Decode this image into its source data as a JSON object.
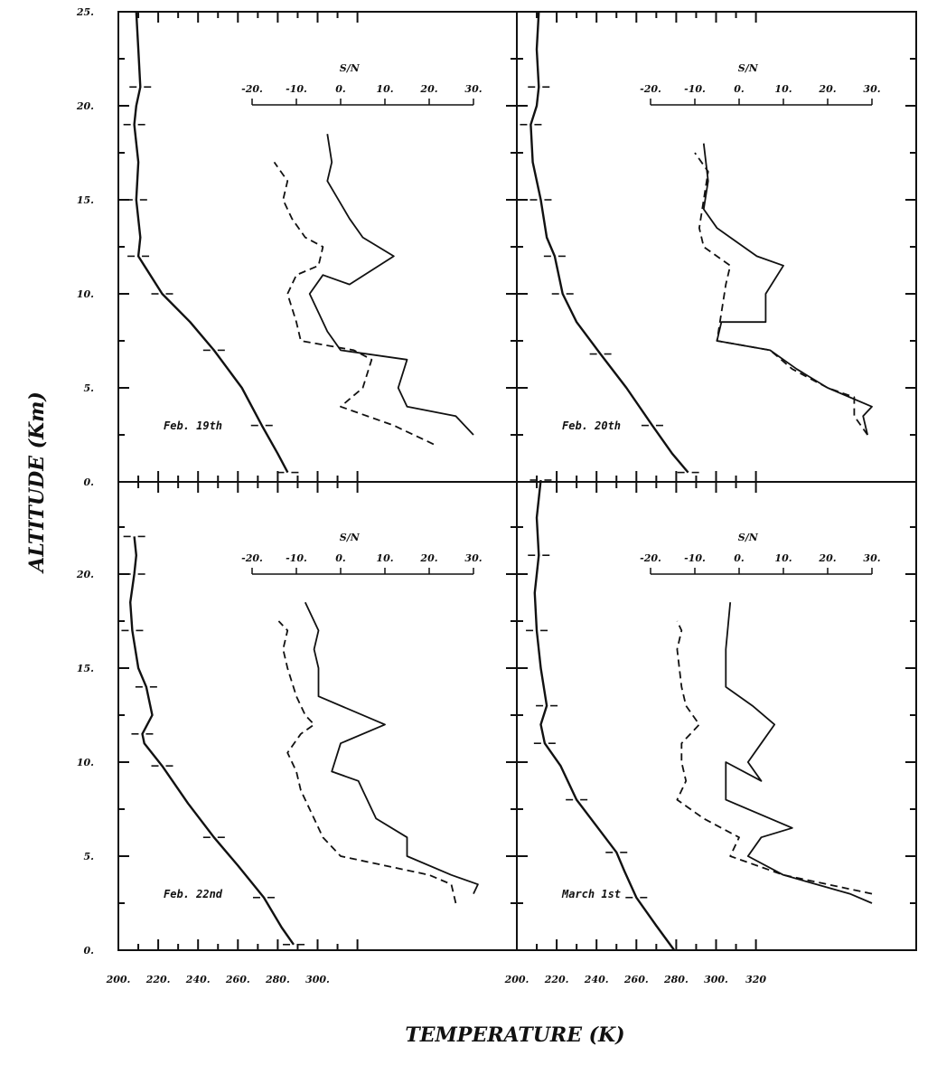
{
  "chart_data": {
    "type": "line",
    "xlabel": "TEMPERATURE (K)",
    "ylabel": "ALTITUDE (Km)",
    "x_ticks": [
      "200.",
      "220.",
      "240.",
      "260.",
      "280.",
      "300.",
      "320"
    ],
    "x_ticks_panel_left": [
      "200.",
      "220.",
      "240.",
      "260.",
      "280.",
      "300."
    ],
    "y_ticks_top": [
      "0.",
      "5.",
      "10.",
      "15.",
      "20.",
      "25."
    ],
    "y_ticks_bottom": [
      "0.",
      "5.",
      "10.",
      "15.",
      "20."
    ],
    "sn_title": "S/N",
    "sn_ticks": [
      "-20.",
      "-10.",
      "0.",
      "10.",
      "20.",
      "30."
    ],
    "grid": false,
    "panels": [
      {
        "label": "Feb. 19th",
        "temperature": [
          [
            285,
            0.5
          ],
          [
            280,
            1.5
          ],
          [
            272,
            3
          ],
          [
            262,
            5
          ],
          [
            248,
            7
          ],
          [
            236,
            8.5
          ],
          [
            222,
            10
          ],
          [
            213,
            11.5
          ],
          [
            210,
            12
          ],
          [
            211,
            13
          ],
          [
            209,
            15
          ],
          [
            210,
            17
          ],
          [
            208,
            19
          ],
          [
            209,
            20
          ],
          [
            211,
            21
          ],
          [
            210,
            23
          ],
          [
            209,
            25
          ]
        ],
        "sn_solid": [
          [
            30,
            2.5
          ],
          [
            26,
            3.5
          ],
          [
            15,
            4
          ],
          [
            13,
            5
          ],
          [
            15,
            6.5
          ],
          [
            0,
            7
          ],
          [
            -3,
            8
          ],
          [
            -5,
            9
          ],
          [
            -7,
            10
          ],
          [
            -4,
            11
          ],
          [
            2,
            10.5
          ],
          [
            12,
            12
          ],
          [
            5,
            13
          ],
          [
            2,
            14
          ],
          [
            -3,
            16
          ],
          [
            -2,
            17
          ],
          [
            -3,
            18.5
          ]
        ],
        "sn_dashed": [
          [
            21,
            2
          ],
          [
            12,
            3
          ],
          [
            0,
            4
          ],
          [
            5,
            5
          ],
          [
            7,
            6.5
          ],
          [
            3,
            7
          ],
          [
            -9,
            7.5
          ],
          [
            -10,
            8.5
          ],
          [
            -12,
            10
          ],
          [
            -10,
            11
          ],
          [
            -5,
            11.5
          ],
          [
            -4,
            12.5
          ],
          [
            -8,
            13
          ],
          [
            -11,
            14
          ],
          [
            -13,
            15
          ],
          [
            -12,
            16
          ],
          [
            -15,
            17
          ]
        ]
      },
      {
        "label": "Feb. 20th",
        "temperature": [
          [
            286,
            0.5
          ],
          [
            278,
            1.5
          ],
          [
            268,
            3
          ],
          [
            255,
            5
          ],
          [
            242,
            6.8
          ],
          [
            230,
            8.5
          ],
          [
            223,
            10
          ],
          [
            220,
            11.5
          ],
          [
            219,
            12
          ],
          [
            215,
            13
          ],
          [
            212,
            15
          ],
          [
            208,
            17
          ],
          [
            207,
            19
          ],
          [
            210,
            20
          ],
          [
            211,
            21
          ],
          [
            210,
            23
          ],
          [
            211,
            25
          ]
        ],
        "sn_solid": [
          [
            29,
            2.5
          ],
          [
            28,
            3.5
          ],
          [
            30,
            4
          ],
          [
            20,
            5
          ],
          [
            13,
            6
          ],
          [
            7,
            7
          ],
          [
            -5,
            7.5
          ],
          [
            -4,
            8.5
          ],
          [
            6,
            8.5
          ],
          [
            6,
            10
          ],
          [
            10,
            11.5
          ],
          [
            4,
            12
          ],
          [
            -2,
            13
          ],
          [
            -5,
            13.5
          ],
          [
            -8,
            14.5
          ],
          [
            -7,
            16
          ],
          [
            -8,
            18
          ]
        ],
        "sn_dashed": [
          [
            29,
            2.5
          ],
          [
            26,
            3.5
          ],
          [
            26,
            4.5
          ],
          [
            20,
            5
          ],
          [
            12,
            6
          ],
          [
            7,
            7
          ],
          [
            -5,
            7.5
          ],
          [
            -4,
            9
          ],
          [
            -3,
            10.5
          ],
          [
            -2,
            11.5
          ],
          [
            -8,
            12.5
          ],
          [
            -9,
            13.5
          ],
          [
            -8,
            15
          ],
          [
            -7,
            16.5
          ],
          [
            -10,
            17.5
          ]
        ]
      },
      {
        "label": "Feb. 22nd",
        "temperature": [
          [
            288,
            0.3
          ],
          [
            282,
            1.2
          ],
          [
            273,
            2.8
          ],
          [
            260,
            4.5
          ],
          [
            248,
            6
          ],
          [
            235,
            7.8
          ],
          [
            222,
            9.8
          ],
          [
            213,
            11
          ],
          [
            212,
            11.5
          ],
          [
            217,
            12.5
          ],
          [
            214,
            14
          ],
          [
            210,
            15
          ],
          [
            207,
            17
          ],
          [
            206,
            18.5
          ],
          [
            208,
            20
          ],
          [
            209,
            21
          ],
          [
            208,
            22
          ]
        ],
        "sn_solid": [
          [
            30,
            3
          ],
          [
            31,
            3.5
          ],
          [
            25,
            4
          ],
          [
            15,
            5
          ],
          [
            15,
            6
          ],
          [
            8,
            7
          ],
          [
            5,
            8.5
          ],
          [
            4,
            9
          ],
          [
            -2,
            9.5
          ],
          [
            0,
            11
          ],
          [
            10,
            12
          ],
          [
            -5,
            13.5
          ],
          [
            -5,
            15
          ],
          [
            -6,
            16
          ],
          [
            -5,
            17
          ],
          [
            -8,
            18.5
          ]
        ],
        "sn_dashed": [
          [
            26,
            2.5
          ],
          [
            25,
            3.5
          ],
          [
            20,
            4
          ],
          [
            0,
            5
          ],
          [
            -4,
            6
          ],
          [
            -6,
            7
          ],
          [
            -9,
            8.5
          ],
          [
            -10,
            9.5
          ],
          [
            -12,
            10.5
          ],
          [
            -9,
            11.5
          ],
          [
            -6,
            12
          ],
          [
            -8,
            12.5
          ],
          [
            -10,
            13.5
          ],
          [
            -12,
            15
          ],
          [
            -13,
            16
          ],
          [
            -12,
            17
          ],
          [
            -14,
            17.5
          ]
        ]
      },
      {
        "label": "March 1st",
        "temperature": [
          [
            279,
            0
          ],
          [
            270,
            1.3
          ],
          [
            260,
            2.8
          ],
          [
            254,
            4.2
          ],
          [
            250,
            5.2
          ],
          [
            240,
            6.6
          ],
          [
            230,
            8
          ],
          [
            222,
            9.8
          ],
          [
            214,
            11
          ],
          [
            212,
            12
          ],
          [
            215,
            13
          ],
          [
            212,
            15
          ],
          [
            210,
            17
          ],
          [
            209,
            19
          ],
          [
            211,
            21
          ],
          [
            210,
            23
          ],
          [
            212,
            25
          ]
        ],
        "sn_solid": [
          [
            30,
            2.5
          ],
          [
            25,
            3
          ],
          [
            10,
            4
          ],
          [
            2,
            5
          ],
          [
            5,
            6
          ],
          [
            12,
            6.5
          ],
          [
            -3,
            8
          ],
          [
            -3,
            10
          ],
          [
            5,
            9
          ],
          [
            2,
            10
          ],
          [
            5,
            11
          ],
          [
            8,
            12
          ],
          [
            3,
            13
          ],
          [
            -3,
            14
          ],
          [
            -3,
            16
          ],
          [
            -2,
            18.5
          ]
        ],
        "sn_dashed": [
          [
            30,
            3
          ],
          [
            10,
            4
          ],
          [
            -2,
            5
          ],
          [
            0,
            6
          ],
          [
            -8,
            7
          ],
          [
            -14,
            8
          ],
          [
            -12,
            9
          ],
          [
            -13,
            10
          ],
          [
            -13,
            11
          ],
          [
            -9,
            12
          ],
          [
            -12,
            13
          ],
          [
            -13,
            14
          ],
          [
            -14,
            16
          ],
          [
            -13,
            17
          ],
          [
            -14,
            17.5
          ]
        ]
      }
    ]
  }
}
